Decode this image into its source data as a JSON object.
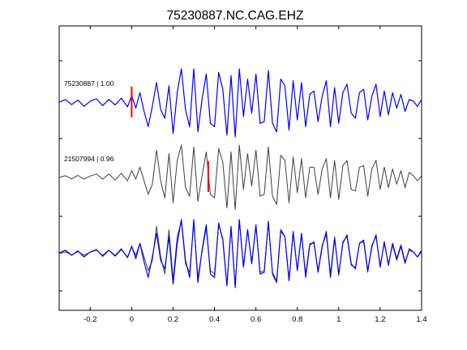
{
  "chart_data": {
    "type": "line",
    "title": "75230887.NC.CAG.EHZ",
    "xlabel": "",
    "ylabel": "",
    "xlim": [
      -0.35,
      1.4
    ],
    "xticks": [
      -0.2,
      0,
      0.2,
      0.4,
      0.6,
      0.8,
      1,
      1.2,
      1.4
    ],
    "xtick_labels": [
      "-0.2",
      "0",
      "0.2",
      "0.4",
      "0.6",
      "0.8",
      "1",
      "1.2",
      "1.4"
    ],
    "grid": false,
    "legend": "none",
    "colors": {
      "reference": "#0000ff",
      "match": "#404040",
      "pick": "#ff0000",
      "axes": "#000000"
    },
    "trace_labels": [
      "75230887 | 1.00",
      "21507994 | 0.96"
    ],
    "picks": [
      {
        "trace": 1,
        "x": 0.0
      },
      {
        "trace": 2,
        "x": 0.37
      }
    ],
    "series": [
      {
        "trace": 1,
        "color": "#0000ff",
        "x": [
          -0.35,
          -0.32,
          -0.29,
          -0.26,
          -0.23,
          -0.2,
          -0.17,
          -0.14,
          -0.11,
          -0.08,
          -0.05,
          -0.02,
          0.0,
          0.02,
          0.04,
          0.06,
          0.08,
          0.1,
          0.12,
          0.14,
          0.16,
          0.18,
          0.2,
          0.22,
          0.24,
          0.26,
          0.28,
          0.3,
          0.32,
          0.34,
          0.36,
          0.38,
          0.4,
          0.42,
          0.44,
          0.46,
          0.48,
          0.5,
          0.52,
          0.54,
          0.56,
          0.58,
          0.6,
          0.62,
          0.64,
          0.66,
          0.68,
          0.7,
          0.72,
          0.74,
          0.76,
          0.78,
          0.8,
          0.82,
          0.84,
          0.86,
          0.88,
          0.9,
          0.92,
          0.94,
          0.96,
          0.98,
          1.0,
          1.02,
          1.04,
          1.06,
          1.08,
          1.1,
          1.12,
          1.14,
          1.16,
          1.18,
          1.2,
          1.22,
          1.24,
          1.26,
          1.28,
          1.3,
          1.32,
          1.34,
          1.36,
          1.38,
          1.4
        ],
        "y": [
          0.02,
          0.1,
          -0.05,
          0.08,
          -0.1,
          0.05,
          0.12,
          -0.08,
          0.1,
          -0.06,
          0.14,
          -0.12,
          0.22,
          -0.15,
          0.3,
          -0.25,
          -0.7,
          -0.1,
          0.6,
          -0.2,
          -0.45,
          0.5,
          -0.9,
          0.3,
          1.0,
          -0.2,
          -0.7,
          1.0,
          -0.85,
          0.1,
          0.85,
          -0.6,
          -0.7,
          0.9,
          0.4,
          -0.95,
          0.8,
          -1.0,
          1.0,
          -0.4,
          0.7,
          -0.3,
          0.85,
          -0.6,
          -0.55,
          0.95,
          -0.6,
          -0.85,
          0.7,
          0.5,
          -0.8,
          0.65,
          -0.5,
          0.6,
          -0.7,
          0.25,
          0.35,
          -0.55,
          0.2,
          0.65,
          -0.7,
          0.45,
          -0.6,
          0.3,
          0.55,
          -0.3,
          -0.45,
          0.3,
          0.4,
          -0.5,
          0.2,
          0.55,
          -0.4,
          0.35,
          -0.35,
          0.3,
          -0.15,
          0.25,
          -0.25,
          0.1,
          0.05,
          -0.1,
          0.1
        ]
      },
      {
        "trace": 2,
        "color": "#404040",
        "x": [
          -0.35,
          -0.32,
          -0.29,
          -0.26,
          -0.23,
          -0.2,
          -0.17,
          -0.14,
          -0.11,
          -0.08,
          -0.05,
          -0.02,
          0.0,
          0.02,
          0.04,
          0.06,
          0.08,
          0.1,
          0.12,
          0.14,
          0.16,
          0.18,
          0.2,
          0.22,
          0.24,
          0.26,
          0.28,
          0.3,
          0.32,
          0.34,
          0.36,
          0.38,
          0.4,
          0.42,
          0.44,
          0.46,
          0.48,
          0.5,
          0.52,
          0.54,
          0.56,
          0.58,
          0.6,
          0.62,
          0.64,
          0.66,
          0.68,
          0.7,
          0.72,
          0.74,
          0.76,
          0.78,
          0.8,
          0.82,
          0.84,
          0.86,
          0.88,
          0.9,
          0.92,
          0.94,
          0.96,
          0.98,
          1.0,
          1.02,
          1.04,
          1.06,
          1.08,
          1.1,
          1.12,
          1.14,
          1.16,
          1.18,
          1.2,
          1.22,
          1.24,
          1.26,
          1.28,
          1.3,
          1.32,
          1.34,
          1.36,
          1.38,
          1.4
        ],
        "y": [
          0.0,
          0.05,
          -0.04,
          0.06,
          -0.05,
          0.04,
          0.1,
          -0.05,
          0.1,
          -0.08,
          0.12,
          -0.1,
          0.2,
          -0.05,
          0.3,
          -0.1,
          -0.5,
          -0.2,
          0.8,
          -0.1,
          -0.6,
          0.7,
          -0.75,
          0.5,
          0.95,
          -0.3,
          -0.55,
          0.9,
          -0.7,
          0.05,
          0.75,
          -0.5,
          -0.6,
          0.85,
          0.45,
          -0.9,
          0.75,
          -0.95,
          0.95,
          -0.35,
          0.7,
          -0.25,
          0.8,
          -0.55,
          -0.5,
          0.9,
          -0.55,
          -0.8,
          0.65,
          0.5,
          -0.75,
          0.6,
          -0.45,
          0.55,
          -0.6,
          0.3,
          0.3,
          -0.5,
          0.25,
          0.55,
          -0.6,
          0.5,
          -0.65,
          0.35,
          0.5,
          -0.35,
          -0.4,
          0.3,
          0.35,
          -0.55,
          0.25,
          0.5,
          -0.35,
          0.3,
          -0.3,
          0.25,
          -0.2,
          0.2,
          -0.3,
          0.15,
          0.05,
          -0.1,
          0.05
        ]
      },
      {
        "trace": 3,
        "color": "#404040",
        "x": [
          -0.35,
          -0.32,
          -0.29,
          -0.26,
          -0.23,
          -0.2,
          -0.17,
          -0.14,
          -0.11,
          -0.08,
          -0.05,
          -0.02,
          0.0,
          0.02,
          0.04,
          0.06,
          0.08,
          0.1,
          0.12,
          0.14,
          0.16,
          0.18,
          0.2,
          0.22,
          0.24,
          0.26,
          0.28,
          0.3,
          0.32,
          0.34,
          0.36,
          0.38,
          0.4,
          0.42,
          0.44,
          0.46,
          0.48,
          0.5,
          0.52,
          0.54,
          0.56,
          0.58,
          0.6,
          0.62,
          0.64,
          0.66,
          0.68,
          0.7,
          0.72,
          0.74,
          0.76,
          0.78,
          0.8,
          0.82,
          0.84,
          0.86,
          0.88,
          0.9,
          0.92,
          0.94,
          0.96,
          0.98,
          1.0,
          1.02,
          1.04,
          1.06,
          1.08,
          1.1,
          1.12,
          1.14,
          1.16,
          1.18,
          1.2,
          1.22,
          1.24,
          1.26,
          1.28,
          1.3,
          1.32,
          1.34,
          1.36,
          1.38,
          1.4
        ],
        "y": [
          0.0,
          0.05,
          -0.04,
          0.06,
          -0.05,
          0.04,
          0.1,
          -0.05,
          0.1,
          -0.08,
          0.12,
          -0.1,
          0.2,
          -0.05,
          0.3,
          -0.1,
          -0.5,
          -0.2,
          0.8,
          -0.1,
          -0.6,
          0.7,
          -0.75,
          0.5,
          0.95,
          -0.3,
          -0.55,
          0.9,
          -0.7,
          0.05,
          0.75,
          -0.5,
          -0.6,
          0.85,
          0.45,
          -0.9,
          0.75,
          -0.95,
          0.95,
          -0.35,
          0.7,
          -0.25,
          0.8,
          -0.55,
          -0.5,
          0.9,
          -0.55,
          -0.8,
          0.65,
          0.5,
          -0.75,
          0.6,
          -0.45,
          0.55,
          -0.6,
          0.3,
          0.3,
          -0.5,
          0.25,
          0.55,
          -0.6,
          0.5,
          -0.65,
          0.35,
          0.5,
          -0.35,
          -0.4,
          0.3,
          0.35,
          -0.55,
          0.25,
          0.5,
          -0.35,
          0.3,
          -0.3,
          0.25,
          -0.2,
          0.2,
          -0.3,
          0.15,
          0.05,
          -0.1,
          0.05
        ]
      },
      {
        "trace": 3,
        "color": "#0000ff",
        "x": [
          -0.35,
          -0.32,
          -0.29,
          -0.26,
          -0.23,
          -0.2,
          -0.17,
          -0.14,
          -0.11,
          -0.08,
          -0.05,
          -0.02,
          0.0,
          0.02,
          0.04,
          0.06,
          0.08,
          0.1,
          0.12,
          0.14,
          0.16,
          0.18,
          0.2,
          0.22,
          0.24,
          0.26,
          0.28,
          0.3,
          0.32,
          0.34,
          0.36,
          0.38,
          0.4,
          0.42,
          0.44,
          0.46,
          0.48,
          0.5,
          0.52,
          0.54,
          0.56,
          0.58,
          0.6,
          0.62,
          0.64,
          0.66,
          0.68,
          0.7,
          0.72,
          0.74,
          0.76,
          0.78,
          0.8,
          0.82,
          0.84,
          0.86,
          0.88,
          0.9,
          0.92,
          0.94,
          0.96,
          0.98,
          1.0,
          1.02,
          1.04,
          1.06,
          1.08,
          1.1,
          1.12,
          1.14,
          1.16,
          1.18,
          1.2,
          1.22,
          1.24,
          1.26,
          1.28,
          1.3,
          1.32,
          1.34,
          1.36,
          1.38,
          1.4
        ],
        "y": [
          0.02,
          0.1,
          -0.05,
          0.08,
          -0.1,
          0.05,
          0.12,
          -0.08,
          0.1,
          -0.06,
          0.14,
          -0.12,
          0.22,
          -0.15,
          0.3,
          -0.25,
          -0.7,
          -0.1,
          0.6,
          -0.2,
          -0.45,
          0.5,
          -0.9,
          0.3,
          1.0,
          -0.2,
          -0.7,
          1.0,
          -0.85,
          0.1,
          0.85,
          -0.6,
          -0.7,
          0.9,
          0.4,
          -0.95,
          0.8,
          -1.0,
          1.0,
          -0.4,
          0.7,
          -0.3,
          0.85,
          -0.6,
          -0.55,
          0.95,
          -0.6,
          -0.85,
          0.7,
          0.5,
          -0.8,
          0.65,
          -0.5,
          0.6,
          -0.7,
          0.25,
          0.35,
          -0.55,
          0.2,
          0.65,
          -0.7,
          0.45,
          -0.6,
          0.3,
          0.55,
          -0.3,
          -0.45,
          0.3,
          0.4,
          -0.5,
          0.2,
          0.55,
          -0.4,
          0.35,
          -0.35,
          0.3,
          -0.15,
          0.25,
          -0.25,
          0.1,
          0.05,
          -0.1,
          0.1
        ]
      }
    ]
  }
}
